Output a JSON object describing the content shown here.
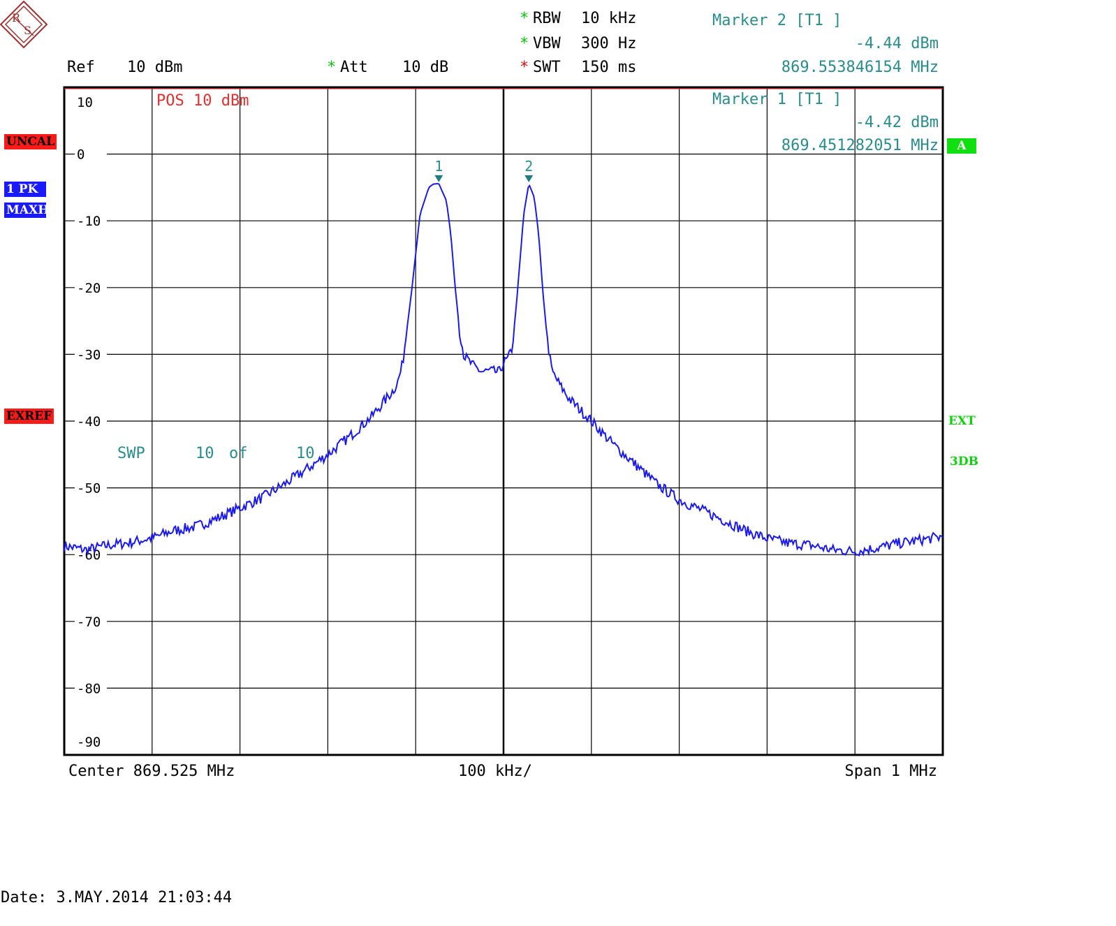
{
  "header": {
    "ref_label": "Ref",
    "ref_value": "10 dBm",
    "att_label": "Att",
    "att_value": "10 dB",
    "rbw_label": "RBW",
    "rbw_value": "10 kHz",
    "vbw_label": "VBW",
    "vbw_value": "300 Hz",
    "swt_label": "SWT",
    "swt_value": "150 ms",
    "star": "*"
  },
  "markers": [
    {
      "title": "Marker 2 [T1 ]",
      "level": "-4.44 dBm",
      "freq": "869.553846154 MHz"
    },
    {
      "title": "Marker 1 [T1 ]",
      "level": "-4.42 dBm",
      "freq": "869.451282051 MHz"
    }
  ],
  "display_line": "POS 10 dBm",
  "sweep": {
    "label": "SWP",
    "count": "10",
    "of": "of",
    "total": "10"
  },
  "badges": {
    "uncal": "UNCAL",
    "detector": "1 PK",
    "trace_mode": "MAXH",
    "exref": "EXREF",
    "trace_a": "A",
    "ext": "EXT",
    "db3": "3DB"
  },
  "footer": {
    "center": "Center 869.525 MHz",
    "div": "100 kHz/",
    "span": "Span 1 MHz",
    "date": "Date: 3.MAY.2014 21:03:44"
  },
  "colors": {
    "trace": "#1a1aee",
    "marker": "#1f7f7f",
    "grid": "#000000"
  },
  "chart_data": {
    "type": "line",
    "xlabel": "",
    "ylabel": "",
    "xlim": [
      869.025,
      870.025
    ],
    "ylim": [
      -90,
      10
    ],
    "x_unit": "MHz",
    "y_unit": "dBm",
    "y_ticks": [
      "10",
      "0",
      "-10",
      "-20",
      "-30",
      "-40",
      "-50",
      "-60",
      "-70",
      "-80",
      "-90"
    ],
    "grid": true,
    "series": [
      {
        "x": [
          869.025,
          869.05,
          869.075,
          869.1,
          869.125,
          869.15,
          869.175,
          869.2,
          869.225,
          869.25,
          869.275,
          869.3,
          869.325,
          869.35,
          869.375,
          869.4,
          869.405,
          869.41,
          869.42,
          869.43,
          869.44,
          869.445,
          869.4513,
          869.46,
          869.465,
          869.47,
          869.475,
          869.48,
          869.49,
          869.5,
          869.51,
          869.52,
          869.525,
          869.53,
          869.535,
          869.54,
          869.548,
          869.5538,
          869.56,
          869.565,
          869.57,
          869.575,
          869.58,
          869.59,
          869.6,
          869.625,
          869.65,
          869.675,
          869.7,
          869.725,
          869.75,
          869.775,
          869.8,
          869.825,
          869.85,
          869.875,
          869.9,
          869.925,
          869.95,
          869.975,
          870.0,
          870.025
        ],
        "y": [
          -58.7,
          -59.3,
          -58.6,
          -58.2,
          -57.5,
          -56.4,
          -55.8,
          -54.5,
          -53.0,
          -51.5,
          -49.5,
          -47.3,
          -45.0,
          -42.3,
          -39.3,
          -35.3,
          -34.0,
          -31.5,
          -21.0,
          -9.0,
          -5.0,
          -4.5,
          -4.42,
          -7.0,
          -12.0,
          -20.0,
          -26.5,
          -30.2,
          -31.7,
          -32.6,
          -32.5,
          -32.7,
          -31.3,
          -30.7,
          -29.0,
          -22.0,
          -9.0,
          -4.44,
          -6.5,
          -12.0,
          -21.0,
          -28.0,
          -32.5,
          -34.8,
          -36.7,
          -40.0,
          -43.5,
          -46.5,
          -49.5,
          -51.8,
          -53.3,
          -54.8,
          -56.4,
          -57.6,
          -58.3,
          -58.6,
          -59.3,
          -59.5,
          -59.0,
          -58.3,
          -57.8,
          -57.3
        ]
      }
    ],
    "marker_points": [
      {
        "label": "1",
        "x": 869.4513,
        "y": -4.42
      },
      {
        "label": "2",
        "x": 869.5538,
        "y": -4.44
      }
    ]
  }
}
